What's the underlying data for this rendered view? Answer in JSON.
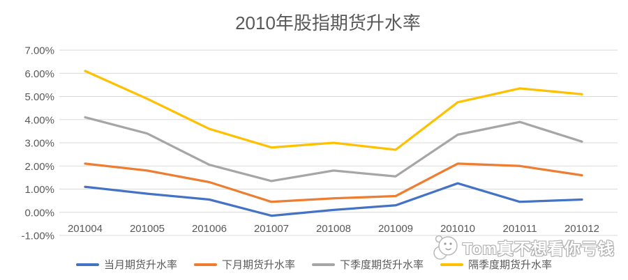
{
  "page": {
    "background": "#ffffff"
  },
  "watermark": {
    "text": "Tom真不想看你亏钱",
    "icon": "panda-face-icon"
  },
  "chart_data": {
    "type": "line",
    "title": "2010年股指期货升水率",
    "title_color": "#595959",
    "xlabel": "",
    "ylabel": "",
    "categories": [
      "201004",
      "201005",
      "201006",
      "201007",
      "201008",
      "201009",
      "201010",
      "201011",
      "201012"
    ],
    "series": [
      {
        "name": "当月期货升水率",
        "color": "#4472C4",
        "values": [
          1.1,
          0.8,
          0.55,
          -0.15,
          0.1,
          0.3,
          1.25,
          0.45,
          0.55
        ]
      },
      {
        "name": "下月期货升水率",
        "color": "#ED7D31",
        "values": [
          2.1,
          1.8,
          1.3,
          0.45,
          0.6,
          0.7,
          2.1,
          2.0,
          1.6
        ]
      },
      {
        "name": "下季度期货升水率",
        "color": "#A6A6A6",
        "values": [
          4.1,
          3.4,
          2.05,
          1.35,
          1.8,
          1.55,
          3.35,
          3.9,
          3.05
        ]
      },
      {
        "name": "隔季度期货升水率",
        "color": "#FFC000",
        "values": [
          6.1,
          4.9,
          3.6,
          2.8,
          3.0,
          2.7,
          4.75,
          5.35,
          5.1
        ]
      }
    ],
    "ylim": [
      -1,
      7
    ],
    "yticks": [
      "7.00%",
      "6.00%",
      "5.00%",
      "4.00%",
      "3.00%",
      "2.00%",
      "1.00%",
      "0.00%",
      "-1.00%"
    ],
    "grid": true,
    "gridline_color": "#D9D9D9",
    "axis_label_color": "#595959",
    "legend_position": "bottom"
  }
}
